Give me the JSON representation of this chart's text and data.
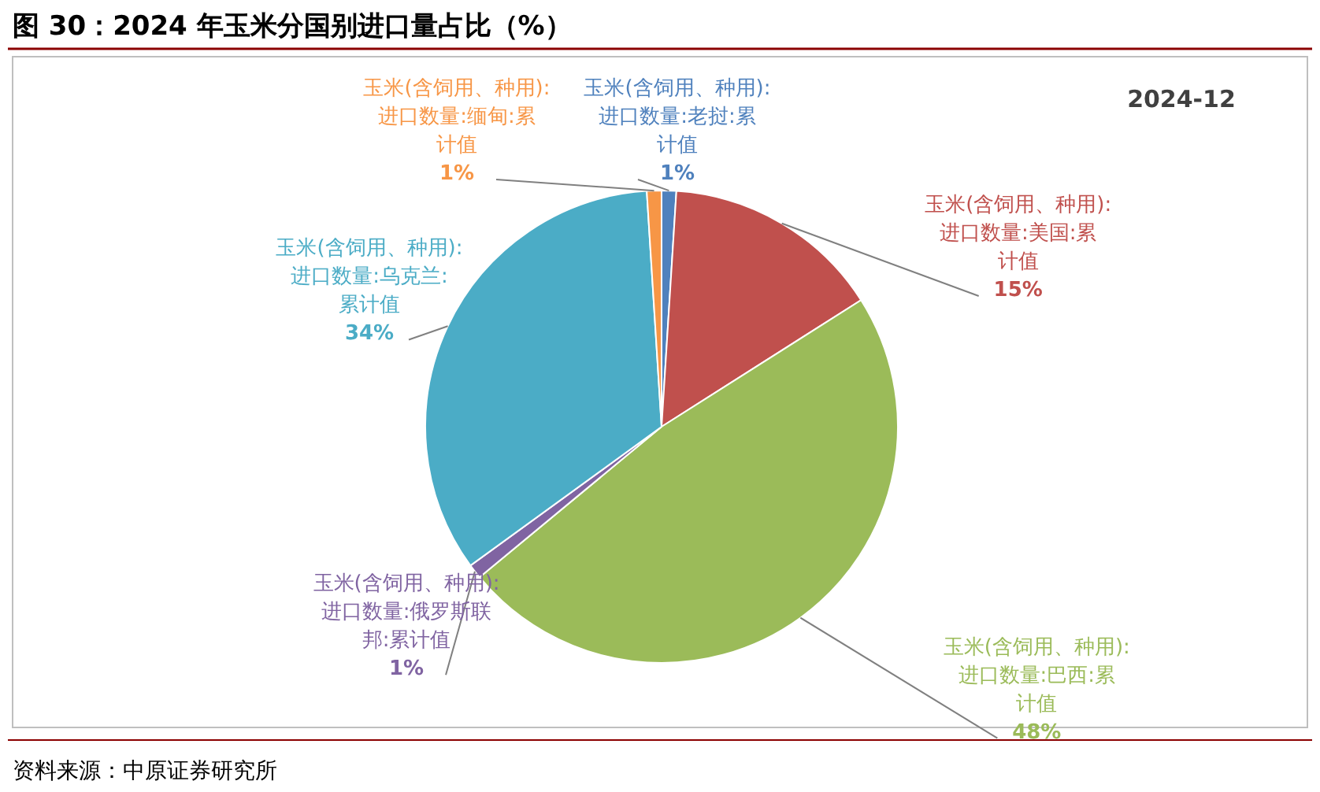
{
  "chart_data": {
    "type": "pie",
    "title": "图 30：2024 年玉米分国别进口量占比（%）",
    "categories": [
      "玉米(含饲用、种用):进口数量:老挝:累计值",
      "玉米(含饲用、种用):进口数量:美国:累计值",
      "玉米(含饲用、种用):进口数量:巴西:累计值",
      "玉米(含饲用、种用):进口数量:俄罗斯联邦:累计值",
      "玉米(含饲用、种用):进口数量:乌克兰:累计值",
      "玉米(含饲用、种用):进口数量:缅甸:累计值"
    ],
    "values": [
      1,
      15,
      48,
      1,
      34,
      1
    ],
    "colors": [
      "#4f81bd",
      "#c0504d",
      "#9bbb59",
      "#8064a2",
      "#4bacc6",
      "#f79646"
    ],
    "value_labels": [
      "1%",
      "15%",
      "48%",
      "1%",
      "34%",
      "1%"
    ],
    "annotations": [
      "2024-12",
      "资料来源：中原证券研究所"
    ]
  }
}
